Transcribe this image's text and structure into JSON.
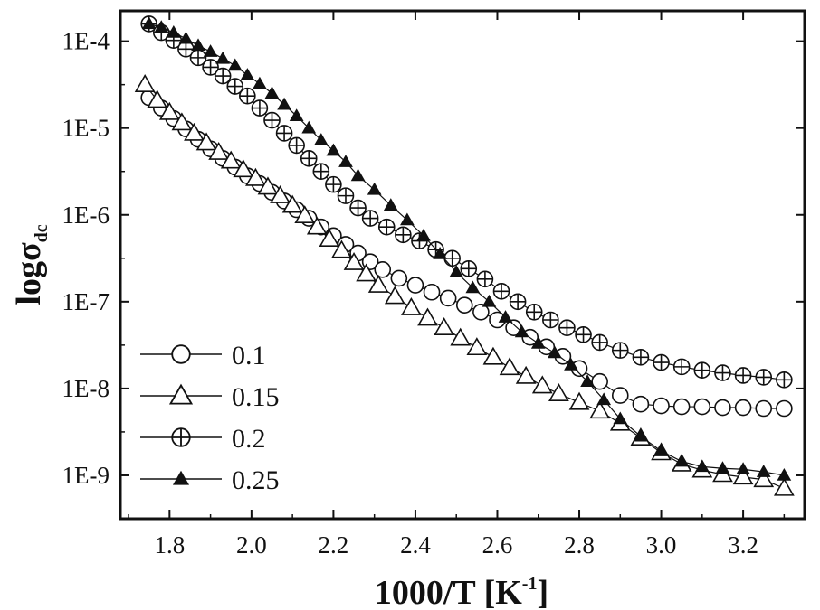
{
  "chart_data": {
    "type": "scatter",
    "title": "",
    "xlabel": "1000/T [K",
    "xlabel_sup": "-1",
    "xlabel_end": "]",
    "ylabel": "logσ",
    "ylabel_sub": "dc",
    "xlim": [
      1.68,
      3.35
    ],
    "ylim_log10": [
      -9.5,
      -3.65
    ],
    "y_scale": "log",
    "x_ticks": [
      "1.8",
      "2.0",
      "2.2",
      "2.4",
      "2.6",
      "2.8",
      "3.0",
      "3.2"
    ],
    "x_tick_values": [
      1.8,
      2.0,
      2.2,
      2.4,
      2.6,
      2.8,
      3.0,
      3.2
    ],
    "y_ticks": [
      "1E-4",
      "1E-5",
      "1E-6",
      "1E-7",
      "1E-8",
      "1E-9"
    ],
    "y_tick_values": [
      -4,
      -5,
      -6,
      -7,
      -8,
      -9
    ],
    "legend_position": "bottom-left",
    "series": [
      {
        "name": "0.1",
        "marker": "circle-open",
        "x": [
          1.75,
          1.78,
          1.81,
          1.84,
          1.87,
          1.9,
          1.93,
          1.96,
          1.99,
          2.02,
          2.05,
          2.08,
          2.11,
          2.14,
          2.17,
          2.2,
          2.23,
          2.26,
          2.29,
          2.32,
          2.36,
          2.4,
          2.44,
          2.48,
          2.52,
          2.56,
          2.6,
          2.64,
          2.68,
          2.72,
          2.76,
          2.8,
          2.85,
          2.9,
          2.95,
          3.0,
          3.05,
          3.1,
          3.15,
          3.2,
          3.25,
          3.3
        ],
        "y": [
          -4.65,
          -4.77,
          -4.89,
          -5.01,
          -5.13,
          -5.24,
          -5.35,
          -5.45,
          -5.55,
          -5.64,
          -5.74,
          -5.84,
          -5.94,
          -6.04,
          -6.14,
          -6.24,
          -6.34,
          -6.44,
          -6.54,
          -6.63,
          -6.73,
          -6.81,
          -6.89,
          -6.96,
          -7.04,
          -7.12,
          -7.21,
          -7.3,
          -7.41,
          -7.52,
          -7.63,
          -7.77,
          -7.92,
          -8.08,
          -8.18,
          -8.2,
          -8.21,
          -8.21,
          -8.22,
          -8.22,
          -8.23,
          -8.23
        ]
      },
      {
        "name": "0.15",
        "marker": "triangle-open",
        "x": [
          1.74,
          1.77,
          1.8,
          1.83,
          1.86,
          1.89,
          1.92,
          1.95,
          1.98,
          2.01,
          2.04,
          2.07,
          2.1,
          2.13,
          2.16,
          2.19,
          2.22,
          2.25,
          2.28,
          2.31,
          2.35,
          2.39,
          2.43,
          2.47,
          2.51,
          2.55,
          2.59,
          2.63,
          2.67,
          2.71,
          2.75,
          2.8,
          2.85,
          2.9,
          2.95,
          3.0,
          3.05,
          3.1,
          3.15,
          3.2,
          3.25,
          3.3
        ],
        "y": [
          -4.5,
          -4.68,
          -4.82,
          -4.94,
          -5.06,
          -5.17,
          -5.28,
          -5.38,
          -5.48,
          -5.58,
          -5.68,
          -5.78,
          -5.89,
          -6.01,
          -6.14,
          -6.28,
          -6.41,
          -6.55,
          -6.68,
          -6.81,
          -6.94,
          -7.07,
          -7.19,
          -7.3,
          -7.42,
          -7.53,
          -7.64,
          -7.76,
          -7.86,
          -7.97,
          -8.06,
          -8.16,
          -8.26,
          -8.4,
          -8.57,
          -8.74,
          -8.87,
          -8.94,
          -8.99,
          -9.02,
          -9.05,
          -9.15
        ]
      },
      {
        "name": "0.2",
        "marker": "circle-plus",
        "x": [
          1.75,
          1.78,
          1.81,
          1.84,
          1.87,
          1.9,
          1.93,
          1.96,
          1.99,
          2.02,
          2.05,
          2.08,
          2.11,
          2.14,
          2.17,
          2.2,
          2.23,
          2.26,
          2.29,
          2.33,
          2.37,
          2.41,
          2.45,
          2.49,
          2.53,
          2.57,
          2.61,
          2.65,
          2.69,
          2.73,
          2.77,
          2.81,
          2.85,
          2.9,
          2.95,
          3.0,
          3.05,
          3.1,
          3.15,
          3.2,
          3.25,
          3.3
        ],
        "y": [
          -3.8,
          -3.9,
          -3.99,
          -4.09,
          -4.19,
          -4.3,
          -4.4,
          -4.52,
          -4.63,
          -4.77,
          -4.91,
          -5.06,
          -5.2,
          -5.35,
          -5.5,
          -5.65,
          -5.78,
          -5.92,
          -6.04,
          -6.14,
          -6.23,
          -6.3,
          -6.4,
          -6.5,
          -6.62,
          -6.74,
          -6.88,
          -7.0,
          -7.12,
          -7.21,
          -7.3,
          -7.38,
          -7.47,
          -7.56,
          -7.64,
          -7.7,
          -7.75,
          -7.79,
          -7.82,
          -7.85,
          -7.87,
          -7.9
        ]
      },
      {
        "name": "0.25",
        "marker": "triangle-filled",
        "x": [
          1.75,
          1.78,
          1.81,
          1.84,
          1.87,
          1.9,
          1.93,
          1.96,
          1.99,
          2.02,
          2.05,
          2.08,
          2.11,
          2.14,
          2.17,
          2.2,
          2.23,
          2.26,
          2.3,
          2.34,
          2.38,
          2.42,
          2.46,
          2.5,
          2.54,
          2.58,
          2.62,
          2.66,
          2.7,
          2.74,
          2.78,
          2.82,
          2.86,
          2.9,
          2.95,
          3.0,
          3.05,
          3.1,
          3.15,
          3.2,
          3.25,
          3.3
        ],
        "y": [
          -3.8,
          -3.84,
          -3.9,
          -3.97,
          -4.05,
          -4.12,
          -4.2,
          -4.28,
          -4.39,
          -4.49,
          -4.6,
          -4.73,
          -4.86,
          -5.0,
          -5.14,
          -5.26,
          -5.39,
          -5.55,
          -5.71,
          -5.89,
          -6.06,
          -6.24,
          -6.45,
          -6.66,
          -6.84,
          -7.0,
          -7.18,
          -7.35,
          -7.48,
          -7.59,
          -7.73,
          -7.92,
          -8.13,
          -8.35,
          -8.55,
          -8.72,
          -8.84,
          -8.9,
          -8.92,
          -8.93,
          -8.96,
          -9.0
        ]
      }
    ]
  }
}
